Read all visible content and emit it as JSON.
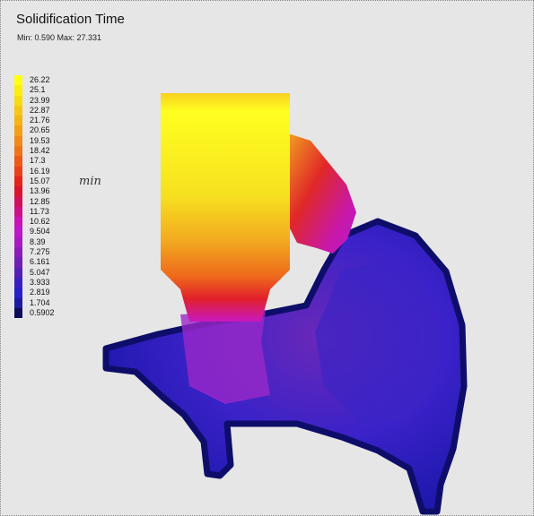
{
  "header": {
    "title": "Solidification Time",
    "subtitle": "Min: 0.590  Max: 27.331"
  },
  "legend": [
    {
      "label": "26.22",
      "color": "#ffff10"
    },
    {
      "label": "25.1",
      "color": "#fbee10"
    },
    {
      "label": "23.99",
      "color": "#f8dc12"
    },
    {
      "label": "22.87",
      "color": "#f6c814"
    },
    {
      "label": "21.76",
      "color": "#f4b416"
    },
    {
      "label": "20.65",
      "color": "#f2a018"
    },
    {
      "label": "19.53",
      "color": "#f08a1a"
    },
    {
      "label": "18.42",
      "color": "#ee741a"
    },
    {
      "label": "17.3",
      "color": "#ec5a1a"
    },
    {
      "label": "16.19",
      "color": "#e8401a"
    },
    {
      "label": "15.07",
      "color": "#e4241a"
    },
    {
      "label": "13.96",
      "color": "#d8142e"
    },
    {
      "label": "12.85",
      "color": "#d0105a"
    },
    {
      "label": "11.73",
      "color": "#cc1088"
    },
    {
      "label": "10.62",
      "color": "#c814b4"
    },
    {
      "label": "9.504",
      "color": "#bc18c8"
    },
    {
      "label": "8.39",
      "color": "#a81ac0"
    },
    {
      "label": "7.275",
      "color": "#8c1cb8"
    },
    {
      "label": "6.161",
      "color": "#701eb4"
    },
    {
      "label": "5.047",
      "color": "#5420b4"
    },
    {
      "label": "3.933",
      "color": "#3a20c0"
    },
    {
      "label": "2.819",
      "color": "#2820c8"
    },
    {
      "label": "1.704",
      "color": "#1c1aa0"
    },
    {
      "label": "0.5902",
      "color": "#0c0c58"
    }
  ],
  "view_label": "min"
}
